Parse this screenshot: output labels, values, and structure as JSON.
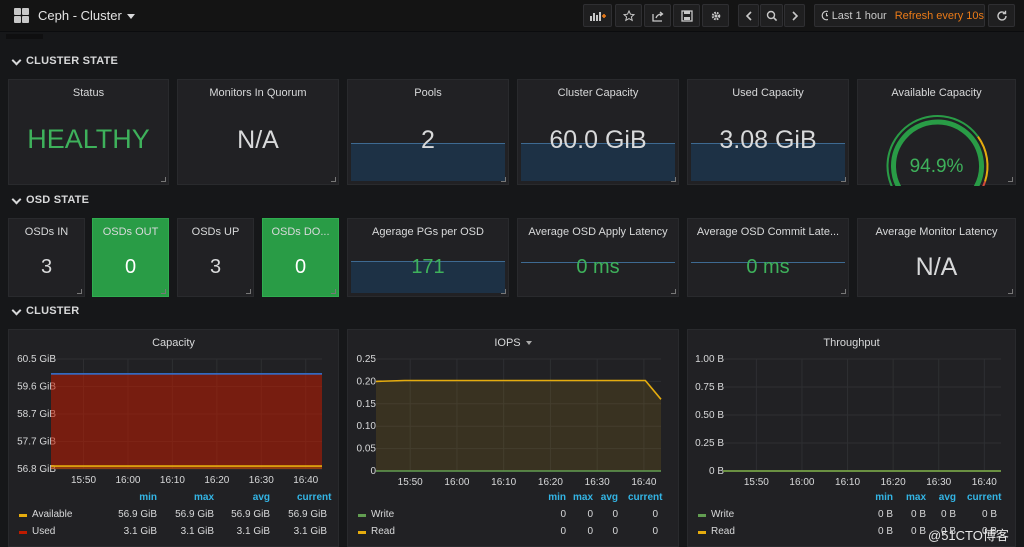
{
  "header": {
    "title": "Ceph - Cluster",
    "time_range": "Last 1 hour",
    "refresh": "Refresh every 10s"
  },
  "rows": {
    "cluster_state": "CLUSTER STATE",
    "osd_state": "OSD STATE",
    "cluster": "CLUSTER"
  },
  "stats_top": [
    {
      "title": "Status",
      "value": "HEALTHY",
      "color": "#299c46"
    },
    {
      "title": "Monitors In Quorum",
      "value": "N/A"
    },
    {
      "title": "Pools",
      "value": "2"
    },
    {
      "title": "Cluster Capacity",
      "value": "60.0 GiB"
    },
    {
      "title": "Used Capacity",
      "value": "3.08 GiB"
    },
    {
      "title": "Available Capacity",
      "value": "94.9%",
      "gauge_fraction": 0.949
    }
  ],
  "stats_osd": [
    {
      "title": "OSDs IN",
      "value": "3"
    },
    {
      "title": "OSDs OUT",
      "value": "0"
    },
    {
      "title": "OSDs UP",
      "value": "3"
    },
    {
      "title": "OSDs DO...",
      "value": "0"
    },
    {
      "title": "Agerage PGs per OSD",
      "value": "171"
    },
    {
      "title": "Average OSD Apply Latency",
      "value": "0 ms"
    },
    {
      "title": "Average OSD Commit Late...",
      "value": "0 ms"
    },
    {
      "title": "Average Monitor Latency",
      "value": "N/A"
    }
  ],
  "colors": {
    "green": "#299c46",
    "text_green": "#3eb15b",
    "blue_line": "#3274d9",
    "yellow": "#e5ac0e",
    "legend_head": "#33b5e5",
    "write_green": "#629e51"
  },
  "legend_headers": [
    "min",
    "max",
    "avg",
    "current"
  ],
  "chart_data": [
    {
      "type": "area",
      "title": "Capacity",
      "x_ticks": [
        "15:50",
        "16:00",
        "16:10",
        "16:20",
        "16:30",
        "16:40"
      ],
      "y_ticks": [
        "60.5 GiB",
        "59.6 GiB",
        "58.7 GiB",
        "57.7 GiB",
        "56.8 GiB"
      ],
      "ylim": [
        56.8,
        60.5
      ],
      "series": [
        {
          "name": "Available",
          "color": "#e5ac0e",
          "values": [
            56.9,
            56.9,
            56.9,
            56.9,
            56.9,
            56.9
          ],
          "legend": [
            "56.9 GiB",
            "56.9 GiB",
            "56.9 GiB",
            "56.9 GiB"
          ]
        },
        {
          "name": "Used",
          "color": "#bf1b00",
          "values": [
            60.0,
            60.0,
            60.0,
            60.0,
            60.0,
            60.0
          ],
          "legend": [
            "3.1 GiB",
            "3.1 GiB",
            "3.1 GiB",
            "3.1 GiB"
          ]
        }
      ]
    },
    {
      "type": "line",
      "title": "IOPS",
      "x_ticks": [
        "15:50",
        "16:00",
        "16:10",
        "16:20",
        "16:30",
        "16:40"
      ],
      "y_ticks": [
        "0.25",
        "0.20",
        "0.15",
        "0.10",
        "0.05",
        "0"
      ],
      "ylim": [
        0,
        0.25
      ],
      "series": [
        {
          "name": "Write",
          "color": "#629e51",
          "values": [
            0,
            0,
            0,
            0,
            0,
            0,
            0,
            0
          ],
          "legend": [
            "0",
            "0",
            "0",
            "0"
          ]
        },
        {
          "name": "Read",
          "color": "#e5ac0e",
          "values": [
            0.2,
            0.202,
            0.202,
            0.202,
            0.202,
            0.202,
            0.202,
            0.16
          ],
          "legend": [
            "0",
            "0",
            "0",
            "0"
          ]
        }
      ]
    },
    {
      "type": "line",
      "title": "Throughput",
      "x_ticks": [
        "15:50",
        "16:00",
        "16:10",
        "16:20",
        "16:30",
        "16:40"
      ],
      "y_ticks": [
        "1.00 B",
        "0.75 B",
        "0.50 B",
        "0.25 B",
        "0 B"
      ],
      "ylim": [
        0,
        1
      ],
      "series": [
        {
          "name": "Write",
          "color": "#629e51",
          "values": [
            0,
            0,
            0,
            0,
            0,
            0
          ],
          "legend": [
            "0 B",
            "0 B",
            "0 B",
            "0 B"
          ]
        },
        {
          "name": "Read",
          "color": "#e5ac0e",
          "values": [
            0,
            0,
            0,
            0,
            0,
            0
          ],
          "legend": [
            "0 B",
            "0 B",
            "0 B",
            "0 B"
          ]
        }
      ]
    }
  ],
  "watermark": "@51CTO博客"
}
